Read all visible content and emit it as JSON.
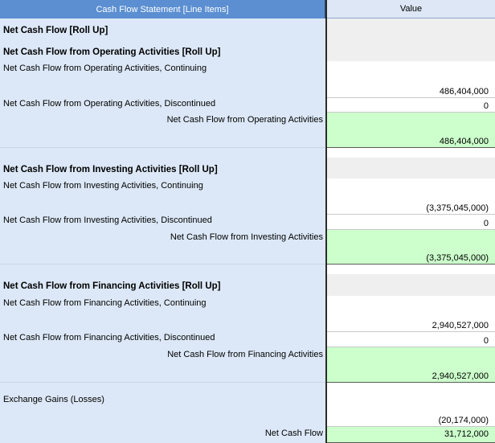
{
  "header": {
    "line_items_label": "Cash Flow Statement [Line Items]",
    "value_label": "Value"
  },
  "rows": [
    {
      "label": "Net Cash Flow [Roll Up]",
      "value": ""
    },
    {
      "label": "Net Cash Flow from Operating Activities [Roll Up]",
      "value": ""
    },
    {
      "label": "Net Cash Flow from Operating Activities, Continuing",
      "value": "486,404,000"
    },
    {
      "label": "Net Cash Flow from Operating Activities, Discontinued",
      "value": "0"
    },
    {
      "label": "Net Cash Flow from Operating Activities",
      "value": "486,404,000"
    },
    {
      "label": "Net Cash Flow from Investing Activities [Roll Up]",
      "value": ""
    },
    {
      "label": "Net Cash Flow from Investing Activities, Continuing",
      "value": "(3,375,045,000)"
    },
    {
      "label": "Net Cash Flow from Investing Activities, Discontinued",
      "value": "0"
    },
    {
      "label": "Net Cash Flow from Investing Activities",
      "value": "(3,375,045,000)"
    },
    {
      "label": "Net Cash Flow from Financing Activities [Roll Up]",
      "value": ""
    },
    {
      "label": "Net Cash Flow from Financing Activities, Continuing",
      "value": "2,940,527,000"
    },
    {
      "label": "Net Cash Flow from Financing Activities, Discontinued",
      "value": "0"
    },
    {
      "label": "Net Cash Flow from Financing Activities",
      "value": "2,940,527,000"
    },
    {
      "label": "Exchange Gains (Losses)",
      "value": "(20,174,000)"
    },
    {
      "label": "Net Cash Flow",
      "value": "31,712,000"
    }
  ],
  "colors": {
    "header_blue": "#5b8fd1",
    "label_bg": "#dce8f7",
    "total_green": "#ccffcc",
    "rollup_grey": "#efefef"
  }
}
